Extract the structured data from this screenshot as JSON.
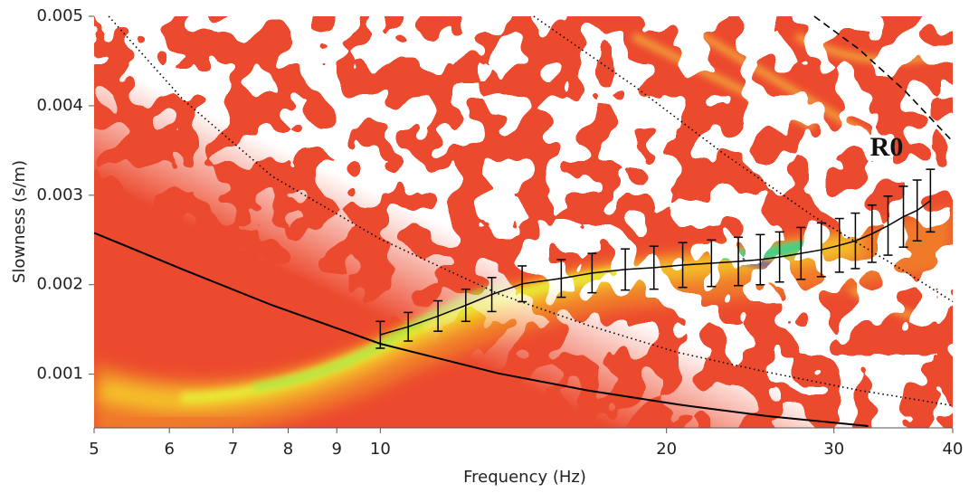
{
  "chart_data": {
    "type": "line",
    "xlabel": "Frequency (Hz)",
    "ylabel": "Slowness (s/m)",
    "xscale": "log",
    "xlim": [
      5,
      40
    ],
    "ylim": [
      0.0004,
      0.005
    ],
    "xticks": [
      5,
      6,
      7,
      8,
      9,
      10,
      20,
      30,
      40
    ],
    "yticks": [
      0.001,
      0.002,
      0.003,
      0.004,
      0.005
    ],
    "annotation": "R0",
    "series": [
      {
        "style": "solid",
        "color": "#000000",
        "x": [
          5,
          6.2,
          7.7,
          10,
          13.3,
          16.5,
          20.6,
          25.6,
          32.6
        ],
        "values": [
          0.00258,
          0.00217,
          0.00177,
          0.00134,
          0.00101,
          0.00082,
          0.00066,
          0.00053,
          0.00042
        ]
      },
      {
        "style": "dotted",
        "color": "#000000",
        "x": [
          5.18,
          6.2,
          7.7,
          10,
          13.3,
          16.5,
          20.6,
          25.6,
          31.9,
          40
        ],
        "values": [
          0.005,
          0.00407,
          0.00321,
          0.00251,
          0.0019,
          0.00155,
          0.00124,
          0.00102,
          0.00082,
          0.00065
        ]
      },
      {
        "style": "dotted",
        "color": "#000000",
        "x": [
          14.5,
          18.5,
          23.0,
          28.6,
          35.6,
          40
        ],
        "values": [
          0.005,
          0.00422,
          0.00346,
          0.00276,
          0.00215,
          0.00181
        ]
      },
      {
        "style": "dashed",
        "color": "#000000",
        "x": [
          28.6,
          31.9,
          35.6,
          40
        ],
        "values": [
          0.005,
          0.00463,
          0.00417,
          0.0036
        ]
      }
    ],
    "picks": {
      "color": "#000000",
      "x": [
        10.0,
        10.7,
        11.5,
        12.3,
        13.1,
        14.1,
        15.5,
        16.7,
        18.1,
        19.4,
        20.8,
        22.3,
        23.8,
        25.1,
        26.3,
        27.7,
        29.1,
        30.4,
        31.6,
        32.9,
        34.2,
        35.5,
        36.7,
        37.9
      ],
      "values": [
        0.00144,
        0.00153,
        0.00165,
        0.00177,
        0.00189,
        0.00201,
        0.00207,
        0.00213,
        0.00217,
        0.00219,
        0.00222,
        0.00224,
        0.00226,
        0.00228,
        0.00231,
        0.00235,
        0.00239,
        0.00244,
        0.00249,
        0.00257,
        0.00266,
        0.00276,
        0.00283,
        0.00294
      ],
      "errors": [
        0.00015,
        0.00016,
        0.00017,
        0.00018,
        0.00019,
        0.0002,
        0.00021,
        0.00022,
        0.00023,
        0.00024,
        0.00025,
        0.00026,
        0.00027,
        0.00028,
        0.00028,
        0.00029,
        0.0003,
        0.0003,
        0.00031,
        0.00032,
        0.00033,
        0.00034,
        0.00034,
        0.00035
      ]
    }
  }
}
